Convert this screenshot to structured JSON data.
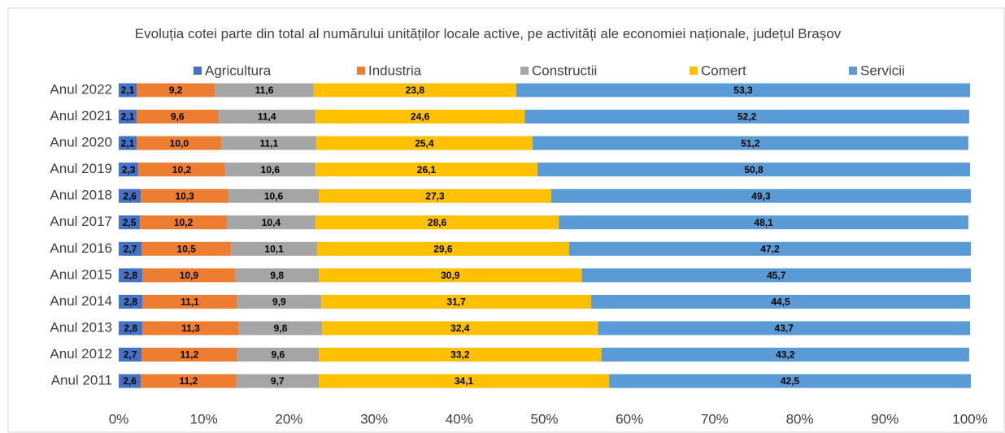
{
  "chart_data": {
    "type": "stacked-bar-horizontal",
    "title": "Evoluția cotei parte din total al numărului unităților locale active, pe activități ale economiei naționale, județul Brașov",
    "categories": [
      "Anul 2022",
      "Anul 2021",
      "Anul 2020",
      "Anul 2019",
      "Anul 2018",
      "Anul 2017",
      "Anul 2016",
      "Anul 2015",
      "Anul 2014",
      "Anul 2013",
      "Anul 2012",
      "Anul 2011"
    ],
    "series": [
      {
        "name": "Agricultura",
        "color": "#4472c4",
        "values": [
          2.1,
          2.1,
          2.1,
          2.3,
          2.6,
          2.5,
          2.7,
          2.8,
          2.8,
          2.8,
          2.7,
          2.6
        ],
        "value_labels": [
          "2,1",
          "2,1",
          "2,1",
          "2,3",
          "2,6",
          "2,5",
          "2,7",
          "2,8",
          "2,8",
          "2,8",
          "2,7",
          "2,6"
        ]
      },
      {
        "name": "Industria",
        "color": "#ed7d31",
        "values": [
          9.2,
          9.6,
          10.0,
          10.2,
          10.3,
          10.2,
          10.5,
          10.9,
          11.1,
          11.3,
          11.2,
          11.2
        ],
        "value_labels": [
          "9,2",
          "9,6",
          "10,0",
          "10,2",
          "10,3",
          "10,2",
          "10,5",
          "10,9",
          "11,1",
          "11,3",
          "11,2",
          "11,2"
        ]
      },
      {
        "name": "Constructii",
        "color": "#a5a5a5",
        "values": [
          11.6,
          11.4,
          11.1,
          10.6,
          10.6,
          10.4,
          10.1,
          9.8,
          9.9,
          9.8,
          9.6,
          9.7
        ],
        "value_labels": [
          "11,6",
          "11,4",
          "11,1",
          "10,6",
          "10,6",
          "10,4",
          "10,1",
          "9,8",
          "9,9",
          "9,8",
          "9,6",
          "9,7"
        ]
      },
      {
        "name": "Comert",
        "color": "#ffc000",
        "values": [
          23.8,
          24.6,
          25.4,
          26.1,
          27.3,
          28.6,
          29.6,
          30.9,
          31.7,
          32.4,
          33.2,
          34.1
        ],
        "value_labels": [
          "23,8",
          "24,6",
          "25,4",
          "26,1",
          "27,3",
          "28,6",
          "29,6",
          "30,9",
          "31,7",
          "32,4",
          "33,2",
          "34,1"
        ]
      },
      {
        "name": "Servicii",
        "color": "#5b9bd5",
        "values": [
          53.3,
          52.2,
          51.2,
          50.8,
          49.3,
          48.1,
          47.2,
          45.7,
          44.5,
          43.7,
          43.2,
          42.5
        ],
        "value_labels": [
          "53,3",
          "52,2",
          "51,2",
          "50,8",
          "49,3",
          "48,1",
          "47,2",
          "45,7",
          "44,5",
          "43,7",
          "43,2",
          "42,5"
        ]
      }
    ],
    "xlim": [
      0,
      100
    ],
    "xticks": [
      {
        "value": 0,
        "label": "0%"
      },
      {
        "value": 10,
        "label": "10%"
      },
      {
        "value": 20,
        "label": "20%"
      },
      {
        "value": 30,
        "label": "30%"
      },
      {
        "value": 40,
        "label": "40%"
      },
      {
        "value": 50,
        "label": "50%"
      },
      {
        "value": 60,
        "label": "60%"
      },
      {
        "value": 70,
        "label": "70%"
      },
      {
        "value": 80,
        "label": "80%"
      },
      {
        "value": 90,
        "label": "90%"
      },
      {
        "value": 100,
        "label": "100%"
      }
    ],
    "legend": "top"
  }
}
